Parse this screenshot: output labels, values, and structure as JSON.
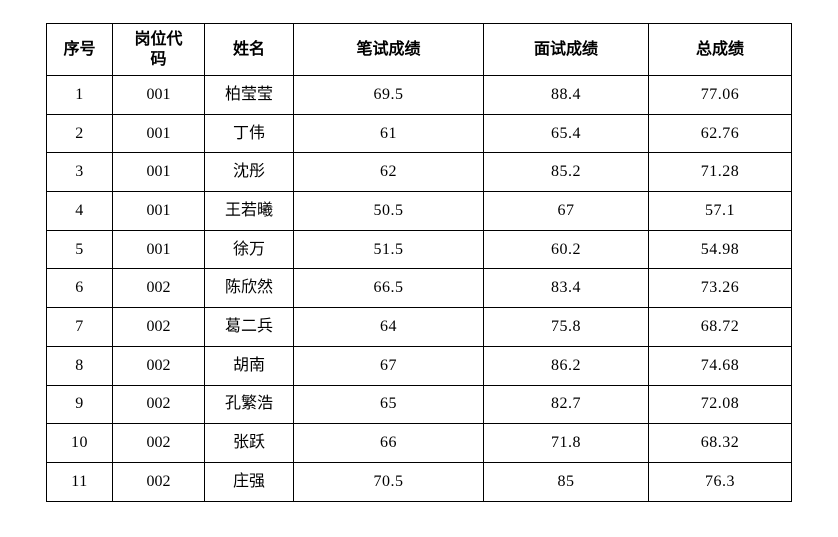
{
  "table": {
    "columns": [
      "序号",
      "岗位代码",
      "姓名",
      "笔试成绩",
      "面试成绩",
      "总成绩"
    ],
    "rows": [
      [
        "1",
        "001",
        "柏莹莹",
        "69.5",
        "88.4",
        "77.06"
      ],
      [
        "2",
        "001",
        "丁伟",
        "61",
        "65.4",
        "62.76"
      ],
      [
        "3",
        "001",
        "沈彤",
        "62",
        "85.2",
        "71.28"
      ],
      [
        "4",
        "001",
        "王若曦",
        "50.5",
        "67",
        "57.1"
      ],
      [
        "5",
        "001",
        "徐万",
        "51.5",
        "60.2",
        "54.98"
      ],
      [
        "6",
        "002",
        "陈欣然",
        "66.5",
        "83.4",
        "73.26"
      ],
      [
        "7",
        "002",
        "葛二兵",
        "64",
        "75.8",
        "68.72"
      ],
      [
        "8",
        "002",
        "胡南",
        "67",
        "86.2",
        "74.68"
      ],
      [
        "9",
        "002",
        "孔繁浩",
        "65",
        "82.7",
        "72.08"
      ],
      [
        "10",
        "002",
        "张跃",
        "66",
        "71.8",
        "68.32"
      ],
      [
        "11",
        "002",
        "庄强",
        "70.5",
        "85",
        "76.3"
      ]
    ]
  }
}
